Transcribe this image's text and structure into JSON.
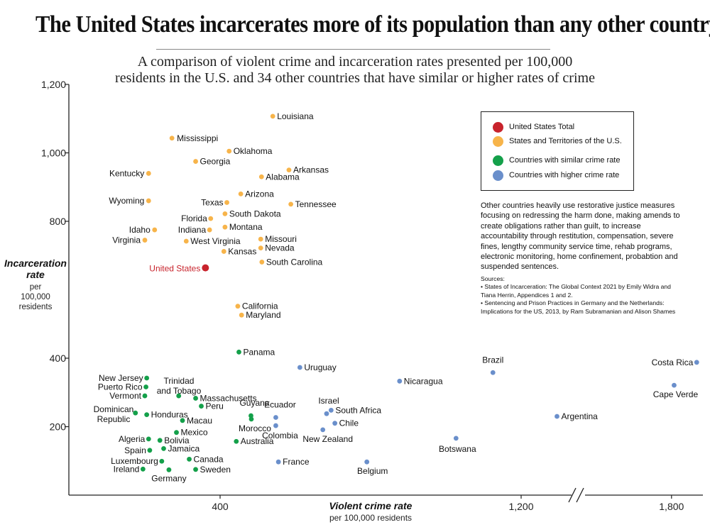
{
  "title": "The United States incarcerates more of its population than any other country",
  "subtitle": {
    "line1": "A comparison of violent crime and incarceration rates presented per 100,000",
    "line2": "residents in the U.S. and 34 other countries that have similar or higher rates of crime"
  },
  "colors": {
    "us_total": "#c8232c",
    "states": "#f7b44a",
    "similar": "#14a04a",
    "higher": "#6a8fcb",
    "axis": "#222222"
  },
  "legend": {
    "us_total": "United States Total",
    "states": "States and Territories of the U.S.",
    "similar": "Countries with similar crime rate",
    "higher": "Countries with higher crime rate"
  },
  "note": "Other countries heavily use restorative justice measures focusing on redressing the harm done, making amends to create obligations rather than guilt, to increase accountability through restitution, compensation, severe fines, lengthy community service time, rehab programs, electronic monitoring, home confinement, probabtion and suspended sentences.",
  "sources": {
    "heading": "Sources:",
    "item1": "• States of Incarceration: The Global Context 2021 by Emily Widra and Tiana Herrin, Appendices 1 and 2.",
    "item2": "• Sentencing and Prison Practices in Germany and the Netherlands: Implications for the US, 2013, by Ram Subramanian and Alison Shames"
  },
  "chart_data": {
    "type": "scatter",
    "title": "The United States incarcerates more of its population than any other country",
    "xlabel": "Violent crime rate",
    "xlabel_sub": "per 100,000 residents",
    "ylabel": "Incarceration rate",
    "ylabel_sub": [
      "per",
      "100,000",
      "residents"
    ],
    "xlim": [
      0,
      1900
    ],
    "ylim": [
      0,
      1200
    ],
    "x_axis_break": "between 1,200 and 1,800",
    "x_ticks": [
      {
        "value": 400,
        "label": "400"
      },
      {
        "value": 1200,
        "label": "1,200"
      },
      {
        "value": 1800,
        "label": "1,800"
      }
    ],
    "y_ticks": [
      {
        "value": 200,
        "label": "200"
      },
      {
        "value": 400,
        "label": "400"
      },
      {
        "value": 800,
        "label": "800"
      },
      {
        "value": 1000,
        "label": "1,000"
      },
      {
        "value": 1200,
        "label": "1,200"
      }
    ],
    "series": [
      {
        "name": "United States Total",
        "color_key": "us_total",
        "points": [
          {
            "label": "United States",
            "x": 361,
            "y": 664
          }
        ]
      },
      {
        "name": "States and Territories of the U.S.",
        "color_key": "states",
        "points": [
          {
            "label": "Louisiana",
            "x": 540,
            "y": 1107
          },
          {
            "label": "Mississippi",
            "x": 272,
            "y": 1043
          },
          {
            "label": "Oklahoma",
            "x": 424,
            "y": 1005
          },
          {
            "label": "Georgia",
            "x": 335,
            "y": 975
          },
          {
            "label": "Arkansas",
            "x": 583,
            "y": 950
          },
          {
            "label": "Alabama",
            "x": 510,
            "y": 930
          },
          {
            "label": "Kentucky",
            "x": 210,
            "y": 940
          },
          {
            "label": "Arizona",
            "x": 455,
            "y": 880
          },
          {
            "label": "Wyoming",
            "x": 210,
            "y": 860
          },
          {
            "label": "Texas",
            "x": 418,
            "y": 855
          },
          {
            "label": "Tennessee",
            "x": 588,
            "y": 850
          },
          {
            "label": "South Dakota",
            "x": 413,
            "y": 822
          },
          {
            "label": "Florida",
            "x": 375,
            "y": 808
          },
          {
            "label": "Montana",
            "x": 413,
            "y": 783
          },
          {
            "label": "Idaho",
            "x": 226,
            "y": 775
          },
          {
            "label": "Indiana",
            "x": 372,
            "y": 775
          },
          {
            "label": "Virginia",
            "x": 200,
            "y": 745
          },
          {
            "label": "Missouri",
            "x": 508,
            "y": 748
          },
          {
            "label": "West Virginia",
            "x": 310,
            "y": 742
          },
          {
            "label": "Nevada",
            "x": 508,
            "y": 722
          },
          {
            "label": "Kansas",
            "x": 410,
            "y": 712
          },
          {
            "label": "South Carolina",
            "x": 511,
            "y": 681
          },
          {
            "label": "California",
            "x": 447,
            "y": 552
          },
          {
            "label": "Maryland",
            "x": 457,
            "y": 526
          }
        ]
      },
      {
        "name": "Countries with similar crime rate",
        "color_key": "similar",
        "points": [
          {
            "label": "Panama",
            "x": 450,
            "y": 418
          },
          {
            "label": "New Jersey",
            "x": 205,
            "y": 342
          },
          {
            "label": "Puerto Rico",
            "x": 203,
            "y": 316
          },
          {
            "label": "Vermont",
            "x": 200,
            "y": 290
          },
          {
            "label": "Trinidad and Tobago",
            "x": 290,
            "y": 290
          },
          {
            "label": "Massachusetts",
            "x": 335,
            "y": 283
          },
          {
            "label": "Peru",
            "x": 350,
            "y": 260
          },
          {
            "label": "Dominican Republic",
            "x": 175,
            "y": 240
          },
          {
            "label": "Honduras",
            "x": 205,
            "y": 235
          },
          {
            "label": "Guyana",
            "x": 482,
            "y": 232
          },
          {
            "label": "Morocco",
            "x": 483,
            "y": 222
          },
          {
            "label": "Macau",
            "x": 300,
            "y": 218
          },
          {
            "label": "Mexico",
            "x": 284,
            "y": 183
          },
          {
            "label": "Algeria",
            "x": 210,
            "y": 164
          },
          {
            "label": "Bolivia",
            "x": 240,
            "y": 160
          },
          {
            "label": "Australia",
            "x": 443,
            "y": 157
          },
          {
            "label": "Jamaica",
            "x": 250,
            "y": 136
          },
          {
            "label": "Spain",
            "x": 213,
            "y": 131
          },
          {
            "label": "Canada",
            "x": 318,
            "y": 105
          },
          {
            "label": "Luxembourg",
            "x": 245,
            "y": 99
          },
          {
            "label": "Ireland",
            "x": 195,
            "y": 76
          },
          {
            "label": "Sweden",
            "x": 335,
            "y": 75
          },
          {
            "label": "Germany",
            "x": 264,
            "y": 74
          }
        ]
      },
      {
        "name": "Countries with higher crime rate",
        "color_key": "higher",
        "points": [
          {
            "label": "Costa Rica",
            "x": 1882,
            "y": 388
          },
          {
            "label": "Uruguay",
            "x": 612,
            "y": 373
          },
          {
            "label": "Brazil",
            "x": 1125,
            "y": 358
          },
          {
            "label": "Nicaragua",
            "x": 877,
            "y": 333
          },
          {
            "label": "Cape Verde",
            "x": 1808,
            "y": 321
          },
          {
            "label": "South Africa",
            "x": 695,
            "y": 248
          },
          {
            "label": "Israel",
            "x": 683,
            "y": 238
          },
          {
            "label": "Argentina",
            "x": 1343,
            "y": 230
          },
          {
            "label": "Ecuador",
            "x": 548,
            "y": 227
          },
          {
            "label": "Chile",
            "x": 705,
            "y": 210
          },
          {
            "label": "Colombia",
            "x": 548,
            "y": 203
          },
          {
            "label": "New Zealand",
            "x": 673,
            "y": 191
          },
          {
            "label": "Botswana",
            "x": 1027,
            "y": 166
          },
          {
            "label": "France",
            "x": 555,
            "y": 97
          },
          {
            "label": "Belgium",
            "x": 790,
            "y": 97
          }
        ]
      }
    ]
  }
}
